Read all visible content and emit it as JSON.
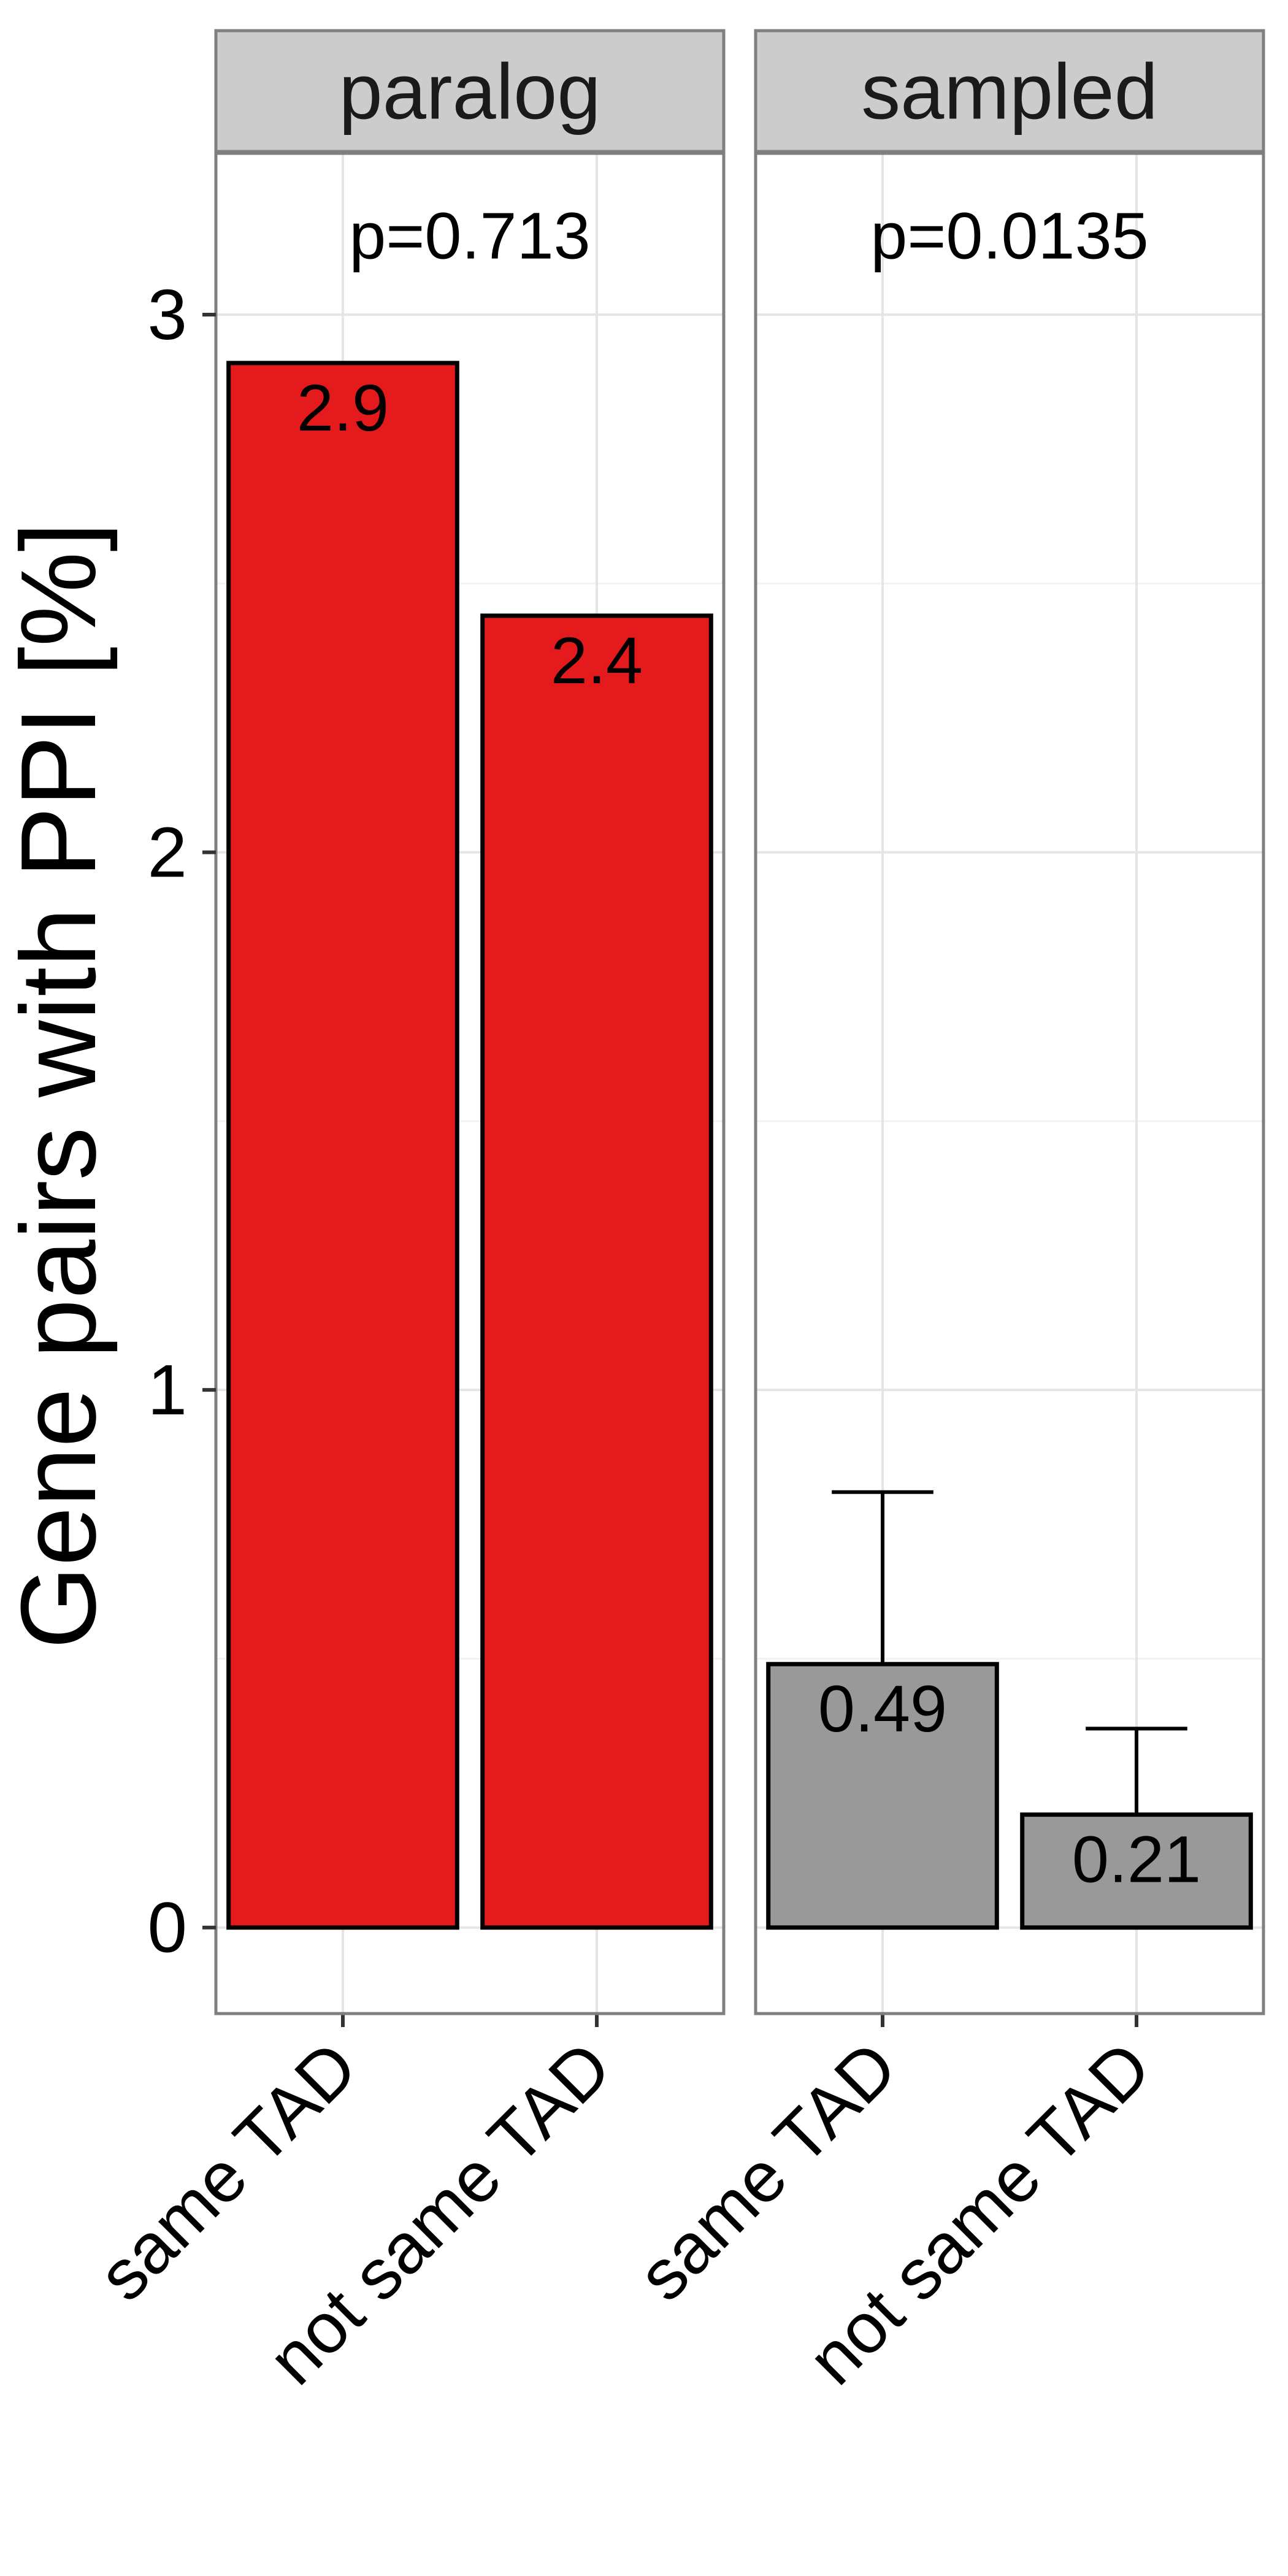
{
  "chart_data": {
    "type": "bar",
    "title": "",
    "ylabel": "Gene pairs with PPI [%]",
    "xlabel": "",
    "ylim": [
      -0.16,
      3.3
    ],
    "yticks": [
      0,
      1,
      2,
      3
    ],
    "grid": true,
    "legend": "none",
    "panels": [
      {
        "name": "paralog",
        "annotation": "p=0.713",
        "color": "#e41a1c",
        "categories": [
          "same TAD",
          "not same TAD"
        ],
        "values": [
          2.91,
          2.44
        ],
        "value_labels": [
          "2.9",
          "2.4"
        ],
        "error_upper": [
          null,
          null
        ]
      },
      {
        "name": "sampled",
        "annotation": "p=0.0135",
        "color": "#999999",
        "categories": [
          "same TAD",
          "not same TAD"
        ],
        "values": [
          0.49,
          0.21
        ],
        "value_labels": [
          "0.49",
          "0.21"
        ],
        "error_upper": [
          0.81,
          0.37
        ]
      }
    ]
  }
}
